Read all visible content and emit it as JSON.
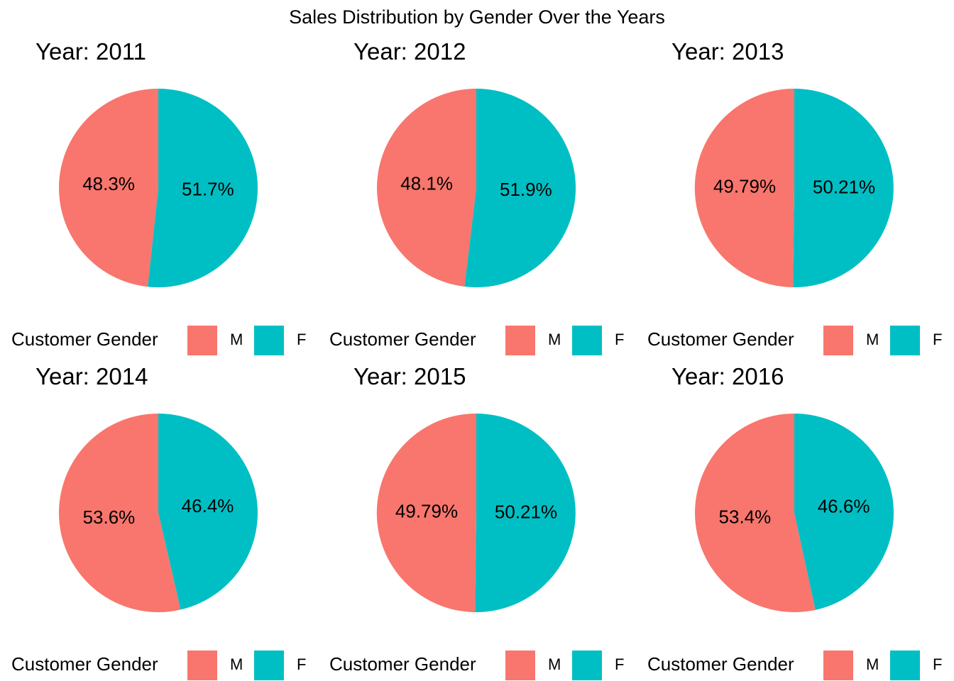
{
  "chart_data": {
    "type": "pie",
    "title": "Sales Distribution by Gender Over the Years",
    "legend_title": "Customer Gender",
    "legend_placement": "bottom",
    "colors": {
      "M": "#F8766D",
      "F": "#00BFC4"
    },
    "panels": [
      {
        "title": "Year: 2011",
        "slices": [
          {
            "name": "M",
            "value": 48.3,
            "label": "48.3%"
          },
          {
            "name": "F",
            "value": 51.7,
            "label": "51.7%"
          }
        ]
      },
      {
        "title": "Year: 2012",
        "slices": [
          {
            "name": "M",
            "value": 48.1,
            "label": "48.1%"
          },
          {
            "name": "F",
            "value": 51.9,
            "label": "51.9%"
          }
        ]
      },
      {
        "title": "Year: 2013",
        "slices": [
          {
            "name": "M",
            "value": 49.79,
            "label": "49.79%"
          },
          {
            "name": "F",
            "value": 50.21,
            "label": "50.21%"
          }
        ]
      },
      {
        "title": "Year: 2014",
        "slices": [
          {
            "name": "M",
            "value": 53.6,
            "label": "53.6%"
          },
          {
            "name": "F",
            "value": 46.4,
            "label": "46.4%"
          }
        ]
      },
      {
        "title": "Year: 2015",
        "slices": [
          {
            "name": "M",
            "value": 49.79,
            "label": "49.79%"
          },
          {
            "name": "F",
            "value": 50.21,
            "label": "50.21%"
          }
        ]
      },
      {
        "title": "Year: 2016",
        "slices": [
          {
            "name": "M",
            "value": 53.4,
            "label": "53.4%"
          },
          {
            "name": "F",
            "value": 46.6,
            "label": "46.6%"
          }
        ]
      }
    ]
  }
}
